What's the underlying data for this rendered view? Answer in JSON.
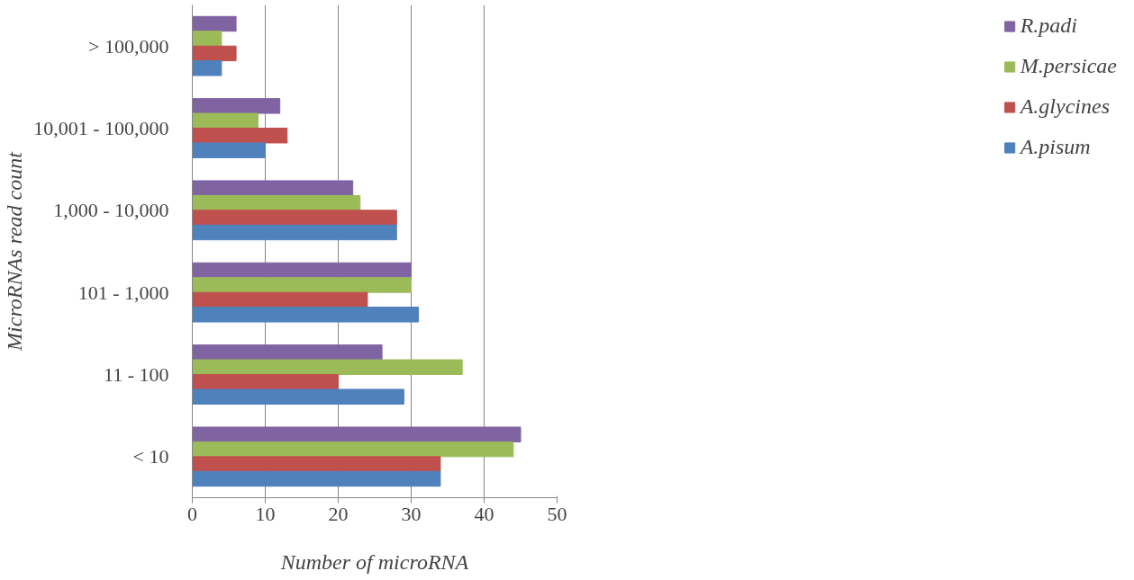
{
  "chart_data": {
    "type": "bar",
    "orientation": "horizontal",
    "xlabel": "Number of microRNA",
    "ylabel": "MicroRNAs read count",
    "categories": [
      "> 100,000",
      "10,001 - 100,000",
      "1,000 - 10,000",
      "101 - 1,000",
      "11 - 100",
      "< 10"
    ],
    "series": [
      {
        "name": "R.padi",
        "color": "#8064a2",
        "values": [
          6,
          12,
          22,
          30,
          26,
          45
        ]
      },
      {
        "name": "M.persicae",
        "color": "#9bbb59",
        "values": [
          4,
          9,
          23,
          30,
          37,
          44
        ]
      },
      {
        "name": "A.glycines",
        "color": "#c0504d",
        "values": [
          6,
          13,
          28,
          24,
          20,
          34
        ]
      },
      {
        "name": "A.pisum",
        "color": "#4f81bd",
        "values": [
          4,
          10,
          28,
          31,
          29,
          34
        ]
      }
    ],
    "xlim": [
      0,
      50
    ],
    "xticks": [
      0,
      10,
      20,
      30,
      40,
      50
    ],
    "grid": "x",
    "legend": "right"
  }
}
